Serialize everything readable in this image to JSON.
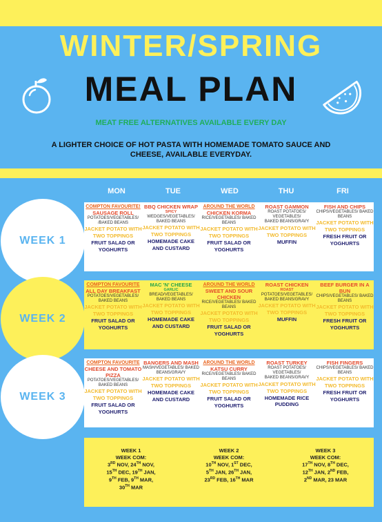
{
  "header": {
    "title_line1": "WINTER/SPRING",
    "title_line2": "MEAL PLAN",
    "subtitle": "MEAT FREE ALTERNATIVES AVAILABLE EVERY DAY",
    "description": "A LIGHTER CHOICE OF HOT PASTA WITH HOMEMADE TOMATO SAUCE AND CHEESE, AVAILABLE EVERYDAY."
  },
  "days": [
    "MON",
    "TUE",
    "WED",
    "THU",
    "FRI"
  ],
  "weeks": [
    {
      "label": "WEEK 1",
      "meals": [
        {
          "lines": [
            [
              "u",
              "COMPTON FAVOURITE!"
            ],
            [
              "r",
              "SAUSAGE ROLL"
            ],
            [
              "s",
              "POTATOES/VEGETABLES/"
            ],
            [
              "s",
              "/BAKED BEANS"
            ],
            [
              "j",
              "JACKET POTATO WITH TWO TOPPINGS"
            ],
            [
              "d",
              "FRUIT SALAD OR YOGHURTS"
            ]
          ]
        },
        {
          "lines": [
            [
              "r",
              "BBQ CHICKEN WRAP"
            ],
            [
              "sr",
              "SPICY"
            ],
            [
              "s",
              "WEDGES/VEGETABLES/ BAKED BEANS"
            ],
            [
              "j",
              "JACKET POTATO WITH TWO TOPPINGS"
            ],
            [
              "d",
              "HOMEMADE CAKE AND CUSTARD"
            ]
          ]
        },
        {
          "lines": [
            [
              "u",
              "AROUND THE WORLD"
            ],
            [
              "r",
              "CHICKEN KORMA"
            ],
            [
              "s",
              "RICE/VEGETABLES/ BAKED BEANS"
            ],
            [
              "j",
              "JACKET POTATO WITH TWO TOPPINGS"
            ],
            [
              "d",
              "FRUIT SALAD OR YOGHURTS"
            ]
          ]
        },
        {
          "lines": [
            [
              "r",
              "ROAST GAMMON"
            ],
            [
              "s",
              "ROAST POTATOES/ VEGETABLES/"
            ],
            [
              "s",
              "BAKED BEANS/GRAVY"
            ],
            [
              "j",
              "JACKET POTATO WITH TWO TOPPINGS"
            ],
            [
              "d",
              "MUFFIN"
            ]
          ]
        },
        {
          "lines": [
            [
              "r",
              "FISH AND CHIPS"
            ],
            [
              "s",
              "CHIPS/VEGETABLES/ BAKED BEANS"
            ],
            [
              "j",
              "JACKET POTATO WITH TWO TOPPINGS"
            ],
            [
              "d",
              "FRESH FRUIT OR YOGHURTS"
            ]
          ]
        }
      ]
    },
    {
      "label": "WEEK 2",
      "meals": [
        {
          "lines": [
            [
              "u",
              "COMPTON FAVOURITE"
            ],
            [
              "r",
              "ALL DAY BREAKFAST"
            ],
            [
              "s",
              "POTATOES/VEGETABLES/ BAKED BEANS"
            ],
            [
              "j",
              "JACKET POTATO WITH TWO TOPPINGS"
            ],
            [
              "d",
              "FRUIT SALAD OR YOGHURTS"
            ]
          ]
        },
        {
          "lines": [
            [
              "g",
              "MAC 'N' CHEESE"
            ],
            [
              "sg",
              "GARLIC"
            ],
            [
              "s",
              "BREAD/VEGETABLES/ BAKED BEANS"
            ],
            [
              "j",
              "JACKET POTATO WITH TWO TOPPINGS"
            ],
            [
              "d",
              "HOMEMADE CAKE AND CUSTARD"
            ]
          ]
        },
        {
          "lines": [
            [
              "u",
              "AROUND THE WORLD"
            ],
            [
              "r",
              "SWEET AND SOUR CHICKEN"
            ],
            [
              "s",
              "RICE/VEGETABLES/ BAKED BEANS"
            ],
            [
              "j",
              "JACKET POTATO WITH TWO TOPPINGS"
            ],
            [
              "d",
              "FRUIT SALAD OR YOGHURTS"
            ]
          ]
        },
        {
          "lines": [
            [
              "r",
              "ROAST CHICKEN"
            ],
            [
              "sr",
              "ROAST"
            ],
            [
              "s",
              "POTATOES/VEGETABLES/ BAKED BEANS/GRAVY"
            ],
            [
              "j",
              "JACKET POTATO WITH TWO TOPPINGS"
            ],
            [
              "d",
              "MUFFIN"
            ]
          ]
        },
        {
          "lines": [
            [
              "r",
              "BEEF BURGER IN A BUN"
            ],
            [
              "s",
              "CHIPS/VEGETABLES/ BAKED BEANS"
            ],
            [
              "j",
              "JACKET POTATO WITH TWO TOPPINGS"
            ],
            [
              "d",
              "FRESH FRUIT OR YOGHURTS"
            ]
          ]
        }
      ]
    },
    {
      "label": "WEEK 3",
      "meals": [
        {
          "lines": [
            [
              "u",
              "COMPTON FAVOURITE"
            ],
            [
              "r",
              "CHEESE AND TOMATO PIZZA"
            ],
            [
              "s",
              "POTATOES/VEGETABLES/ BAKED BEANS"
            ],
            [
              "j",
              "JACKET POTATO WITH TWO TOPPINGS"
            ],
            [
              "d",
              "FRUIT SALAD OR YOGHURTS"
            ]
          ]
        },
        {
          "lines": [
            [
              "r",
              "BANGERS AND MASH"
            ],
            [
              "s",
              "MASH/VEGETABLES/ BAKED BEANS/GRAVY"
            ],
            [
              "j",
              "JACKET POTATO WITH TWO TOPPINGS"
            ],
            [
              "d",
              "HOMEMADE CAKE AND CUSTARD"
            ]
          ]
        },
        {
          "lines": [
            [
              "u",
              "AROUND THE WORLD"
            ],
            [
              "r",
              "KATSU CURRY"
            ],
            [
              "s",
              "RICE/VEGETABLES/ BAKED BEANS"
            ],
            [
              "j",
              "JACKET POTATO WITH TWO TOPPINGS"
            ],
            [
              "d",
              "FRUIT SALAD OR YOGHURTS"
            ]
          ]
        },
        {
          "lines": [
            [
              "r",
              "ROAST TURKEY"
            ],
            [
              "s",
              "ROAST POTATOES/ VEGETABLES/"
            ],
            [
              "s",
              "BAKED BEANS/GRAVY"
            ],
            [
              "j",
              "JACKET POTATO WITH TWO TOPPINGS"
            ],
            [
              "d",
              "HOMEMADE RICE PUDDING"
            ]
          ]
        },
        {
          "lines": [
            [
              "r",
              "FISH FINGERS"
            ],
            [
              "s",
              "CHIPS/VEGETABLES/ BAKED BEANS"
            ],
            [
              "j",
              "JACKET POTATO WITH TWO TOPPINGS"
            ],
            [
              "d",
              "FRESH FRUIT OR YOGHURTS"
            ]
          ]
        }
      ]
    }
  ],
  "week_dates": [
    {
      "title": "WEEK 1",
      "label": "WEEK COM:",
      "lines": [
        "3RD NOV, 24TH NOV,",
        "15TH DEC, 19TH JAN,",
        "9TH FEB, 9TH MAR,",
        "30TH MAR"
      ]
    },
    {
      "title": "WEEK 2",
      "label": "WEEK COM:",
      "lines": [
        "10TH NOV, 1ST DEC,",
        "5TH JAN, 26TH JAN,",
        "23RD FEB, 16TH MAR"
      ]
    },
    {
      "title": "WEEK 3",
      "label": "WEEK COM:",
      "lines": [
        "17TH NOV, 8TH DEC,",
        "12TH JAN, 2ND FEB,",
        "2ND MAR, 23 MAR"
      ]
    }
  ],
  "colors": {
    "sky": "#5ab4f0",
    "yellow": "#fdf05a",
    "white": "#ffffff",
    "navy": "#1d1d6e",
    "red": "#e24a2c",
    "jacket": "#f3ba2c",
    "green": "#1fae5a"
  },
  "icons": [
    "orange-icon",
    "watermelon-slice-icon"
  ]
}
